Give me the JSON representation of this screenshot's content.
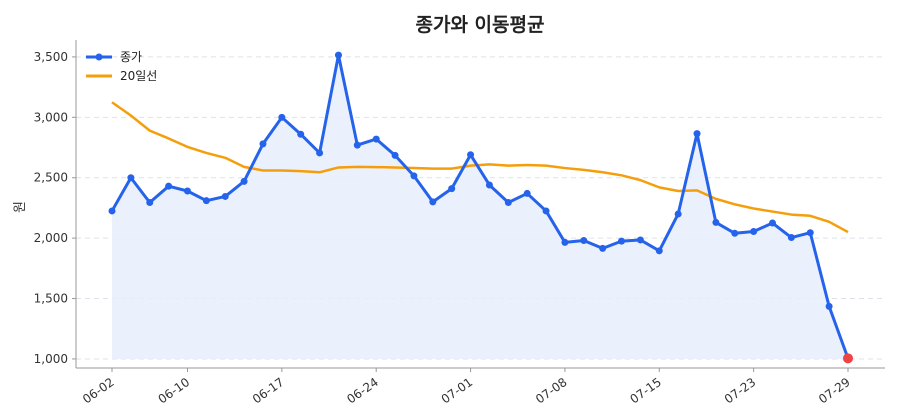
{
  "chart_data": {
    "type": "line",
    "title": "종가와 이동평균",
    "xlabel": "",
    "ylabel": "원",
    "ylim": [
      925,
      3640
    ],
    "y_ticks": [
      1000,
      1500,
      2000,
      2500,
      3000,
      3500
    ],
    "y_tick_labels": [
      "1,000",
      "1,500",
      "2,000",
      "2,500",
      "3,000",
      "3,500"
    ],
    "x_tick_labels": [
      "06-02",
      "06-10",
      "06-17",
      "06-24",
      "07-01",
      "07-08",
      "07-15",
      "07-23",
      "07-29"
    ],
    "x_tick_index": [
      0,
      4,
      9,
      14,
      19,
      24,
      29,
      34,
      39
    ],
    "grid": true,
    "legend_position": "top-left",
    "colors": {
      "close": "#2563eb",
      "ma": "#f59e0b",
      "fill": "#e8eefc",
      "last_point": "#ef4444"
    },
    "series": [
      {
        "name": "종가",
        "values": [
          2225,
          2500,
          2295,
          2430,
          2390,
          2310,
          2345,
          2470,
          2780,
          3000,
          2860,
          2705,
          3515,
          2770,
          2820,
          2685,
          2515,
          2300,
          2410,
          2690,
          2440,
          2295,
          2370,
          2225,
          1965,
          1980,
          1915,
          1975,
          1985,
          1895,
          2200,
          2865,
          2130,
          2040,
          2055,
          2125,
          2005,
          2045,
          1435,
          1005
        ]
      },
      {
        "name": "20일선",
        "values": [
          3125,
          3015,
          2890,
          2825,
          2755,
          2705,
          2665,
          2590,
          2560,
          2560,
          2555,
          2545,
          2585,
          2590,
          2588,
          2585,
          2580,
          2575,
          2575,
          2600,
          2610,
          2600,
          2605,
          2600,
          2580,
          2565,
          2545,
          2520,
          2480,
          2420,
          2390,
          2395,
          2325,
          2280,
          2245,
          2220,
          2195,
          2185,
          2135,
          2050
        ]
      }
    ]
  }
}
